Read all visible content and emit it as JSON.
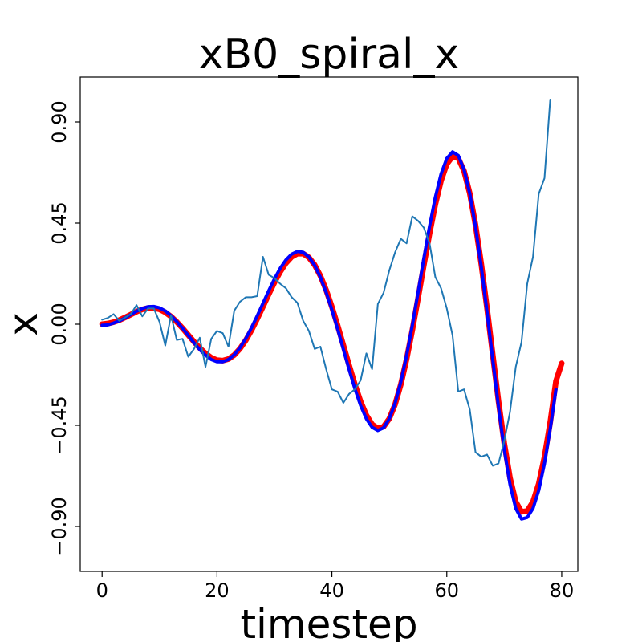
{
  "chart_data": {
    "type": "line",
    "title": "xB0_spiral_x",
    "xlabel": "timestep",
    "ylabel": "x",
    "xlim": [
      -3.8,
      82.8
    ],
    "ylim": [
      -1.1,
      1.1
    ],
    "xticks": [
      0,
      20,
      40,
      60,
      80
    ],
    "xtick_labels": [
      "0",
      "20",
      "40",
      "60",
      "80"
    ],
    "yticks": [
      -0.9,
      -0.45,
      0.0,
      0.45,
      0.9
    ],
    "ytick_labels": [
      "−0.90",
      "−0.45",
      "0.00",
      "0.45",
      "0.90"
    ],
    "grid": false,
    "series": [
      {
        "color": "#ff0000",
        "y": [
          0.0,
          0.003,
          0.009,
          0.018,
          0.03,
          0.043,
          0.056,
          0.066,
          0.072,
          0.072,
          0.066,
          0.053,
          0.034,
          0.01,
          -0.018,
          -0.048,
          -0.078,
          -0.106,
          -0.13,
          -0.149,
          -0.16,
          -0.162,
          -0.155,
          -0.137,
          -0.109,
          -0.072,
          -0.027,
          0.024,
          0.078,
          0.133,
          0.186,
          0.233,
          0.272,
          0.3,
          0.314,
          0.314,
          0.297,
          0.264,
          0.215,
          0.152,
          0.077,
          -0.006,
          -0.094,
          -0.183,
          -0.268,
          -0.344,
          -0.405,
          -0.446,
          -0.464,
          -0.456,
          -0.42,
          -0.357,
          -0.268,
          -0.156,
          -0.026,
          0.116,
          0.262,
          0.404,
          0.533,
          0.639,
          0.713,
          0.747,
          0.738,
          0.682,
          0.582,
          0.441,
          0.268,
          0.071,
          -0.137,
          -0.343,
          -0.53,
          -0.684,
          -0.79,
          -0.835,
          -0.831,
          -0.79,
          -0.71,
          -0.591,
          -0.436,
          -0.253,
          -0.174
        ]
      },
      {
        "color": "#0000ff",
        "y": [
          -0.005,
          -0.003,
          0.005,
          0.015,
          0.028,
          0.043,
          0.058,
          0.07,
          0.078,
          0.079,
          0.073,
          0.059,
          0.038,
          0.012,
          -0.018,
          -0.05,
          -0.083,
          -0.113,
          -0.138,
          -0.157,
          -0.167,
          -0.167,
          -0.157,
          -0.136,
          -0.105,
          -0.064,
          -0.016,
          0.037,
          0.093,
          0.149,
          0.202,
          0.249,
          0.286,
          0.312,
          0.324,
          0.32,
          0.299,
          0.262,
          0.209,
          0.142,
          0.064,
          -0.022,
          -0.112,
          -0.202,
          -0.287,
          -0.362,
          -0.421,
          -0.459,
          -0.473,
          -0.461,
          -0.42,
          -0.352,
          -0.257,
          -0.14,
          -0.005,
          0.142,
          0.292,
          0.436,
          0.565,
          0.669,
          0.738,
          0.767,
          0.751,
          0.688,
          0.581,
          0.434,
          0.256,
          0.054,
          -0.158,
          -0.369,
          -0.558,
          -0.713,
          -0.82,
          -0.867,
          -0.86,
          -0.82,
          -0.74,
          -0.62,
          -0.466,
          -0.29
        ]
      },
      {
        "color": "#1f77b4",
        "y": [
          0.02,
          0.028,
          0.045,
          0.015,
          0.03,
          0.045,
          0.085,
          0.035,
          0.07,
          0.07,
          0.01,
          -0.095,
          0.04,
          -0.07,
          -0.065,
          -0.145,
          -0.11,
          -0.06,
          -0.19,
          -0.065,
          -0.03,
          -0.04,
          -0.1,
          0.06,
          0.1,
          0.12,
          0.12,
          0.125,
          0.3,
          0.22,
          0.205,
          0.18,
          0.16,
          0.12,
          0.095,
          0.015,
          -0.03,
          -0.11,
          -0.1,
          -0.2,
          -0.29,
          -0.3,
          -0.35,
          -0.31,
          -0.29,
          -0.25,
          -0.13,
          -0.2,
          0.09,
          0.14,
          0.24,
          0.32,
          0.38,
          0.36,
          0.48,
          0.46,
          0.43,
          0.36,
          0.21,
          0.16,
          0.07,
          -0.05,
          -0.3,
          -0.29,
          -0.38,
          -0.57,
          -0.59,
          -0.58,
          -0.63,
          -0.62,
          -0.52,
          -0.39,
          -0.19,
          -0.08,
          0.18,
          0.3,
          0.58,
          0.65,
          1.0
        ]
      }
    ]
  }
}
